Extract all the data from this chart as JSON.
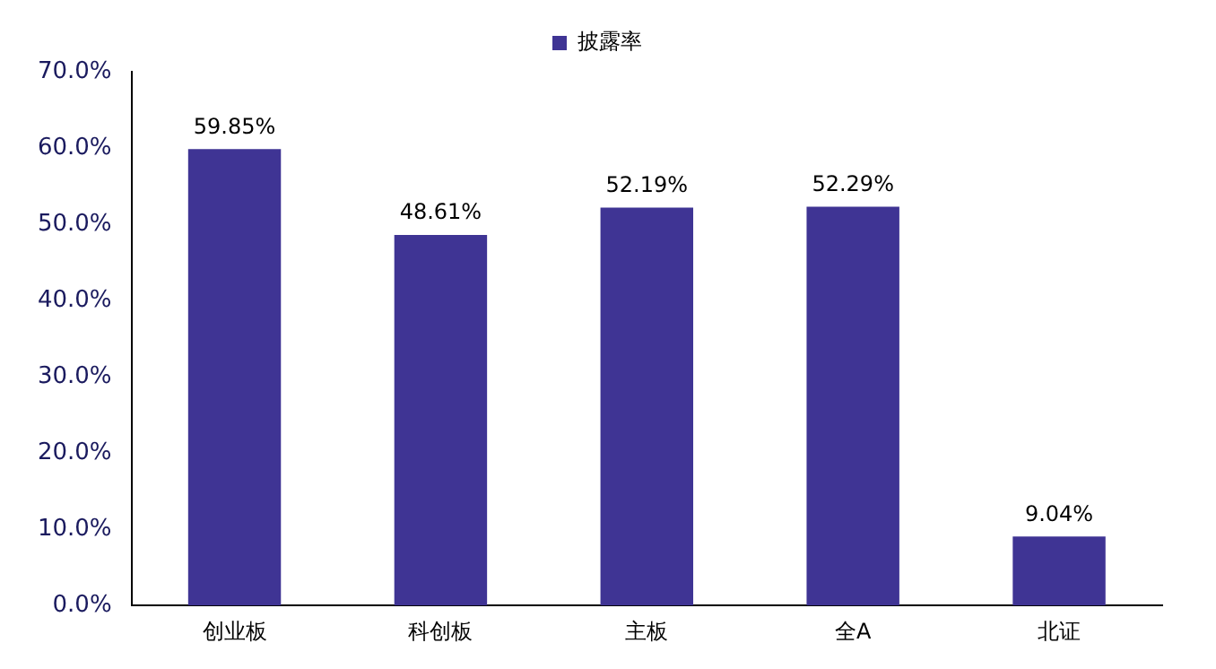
{
  "chart_data": {
    "type": "bar",
    "categories": [
      "创业板",
      "科创板",
      "主板",
      "全A",
      "北证"
    ],
    "series": [
      {
        "name": "披露率",
        "color": "#3f3494",
        "values": [
          59.85,
          48.61,
          52.19,
          52.29,
          9.04
        ],
        "value_labels": [
          "59.85%",
          "48.61%",
          "52.19%",
          "52.29%",
          "9.04%"
        ]
      }
    ],
    "ylim": [
      0,
      70
    ],
    "yticks": [
      {
        "value": 0,
        "label": "0.0%"
      },
      {
        "value": 10,
        "label": "10.0%"
      },
      {
        "value": 20,
        "label": "20.0%"
      },
      {
        "value": 30,
        "label": "30.0%"
      },
      {
        "value": 40,
        "label": "40.0%"
      },
      {
        "value": 50,
        "label": "50.0%"
      },
      {
        "value": 60,
        "label": "60.0%"
      },
      {
        "value": 70,
        "label": "70.0%"
      }
    ],
    "grid": false,
    "legend": "top"
  }
}
